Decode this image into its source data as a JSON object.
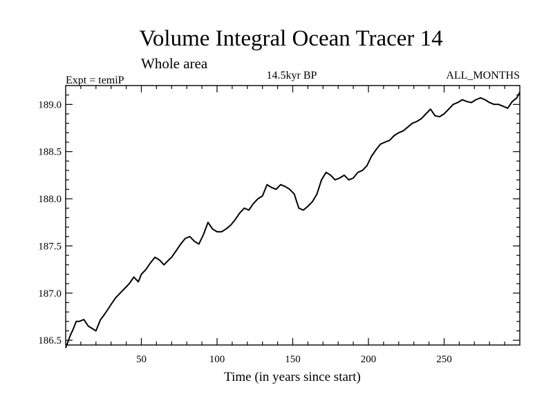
{
  "chart_data": {
    "type": "line",
    "title": "Volume Integral Ocean Tracer 14",
    "subtitle": "Whole area",
    "annotations": {
      "left": "Expt = temiP",
      "center": "14.5kyr BP",
      "right": "ALL_MONTHS"
    },
    "xlabel": "Time (in years since start)",
    "ylabel": "",
    "xlim": [
      0,
      300
    ],
    "ylim": [
      186.45,
      189.2
    ],
    "xticks": [
      50,
      100,
      150,
      200,
      250
    ],
    "yticks": [
      "186.5",
      "187.0",
      "187.5",
      "188.0",
      "188.5",
      "189.0"
    ],
    "grid": false,
    "series": [
      {
        "line_color": "#000000",
        "x": [
          0,
          3,
          5,
          7,
          9,
          12,
          15,
          17,
          20,
          23,
          25,
          28,
          30,
          33,
          36,
          39,
          42,
          45,
          48,
          50,
          53,
          56,
          59,
          62,
          65,
          68,
          70,
          73,
          76,
          79,
          82,
          85,
          88,
          91,
          94,
          97,
          100,
          103,
          106,
          109,
          112,
          115,
          118,
          121,
          124,
          127,
          130,
          133,
          136,
          139,
          142,
          145,
          148,
          151,
          154,
          157,
          160,
          163,
          166,
          169,
          172,
          175,
          178,
          181,
          184,
          187,
          190,
          193,
          196,
          199,
          202,
          205,
          208,
          211,
          214,
          217,
          220,
          223,
          226,
          229,
          232,
          235,
          238,
          241,
          244,
          247,
          250,
          253,
          256,
          259,
          262,
          265,
          268,
          271,
          274,
          277,
          280,
          283,
          286,
          289,
          292,
          295,
          298,
          300
        ],
        "y": [
          186.42,
          186.55,
          186.62,
          186.7,
          186.7,
          186.72,
          186.65,
          186.63,
          186.6,
          186.72,
          186.76,
          186.83,
          186.88,
          186.95,
          187.0,
          187.05,
          187.1,
          187.17,
          187.12,
          187.2,
          187.25,
          187.32,
          187.38,
          187.35,
          187.3,
          187.35,
          187.38,
          187.45,
          187.52,
          187.58,
          187.6,
          187.55,
          187.52,
          187.62,
          187.75,
          187.68,
          187.65,
          187.65,
          187.68,
          187.72,
          187.78,
          187.85,
          187.9,
          187.88,
          187.95,
          188.0,
          188.03,
          188.15,
          188.12,
          188.1,
          188.15,
          188.13,
          188.1,
          188.05,
          187.9,
          187.88,
          187.92,
          187.97,
          188.05,
          188.2,
          188.28,
          188.25,
          188.2,
          188.22,
          188.25,
          188.2,
          188.22,
          188.28,
          188.3,
          188.35,
          188.45,
          188.52,
          188.58,
          188.6,
          188.62,
          188.67,
          188.7,
          188.72,
          188.76,
          188.8,
          188.82,
          188.85,
          188.9,
          188.95,
          188.88,
          188.87,
          188.9,
          188.95,
          189.0,
          189.02,
          189.05,
          189.03,
          189.02,
          189.05,
          189.07,
          189.05,
          189.02,
          189.0,
          189.0,
          188.98,
          188.96,
          189.03,
          189.07,
          189.13
        ]
      }
    ]
  }
}
